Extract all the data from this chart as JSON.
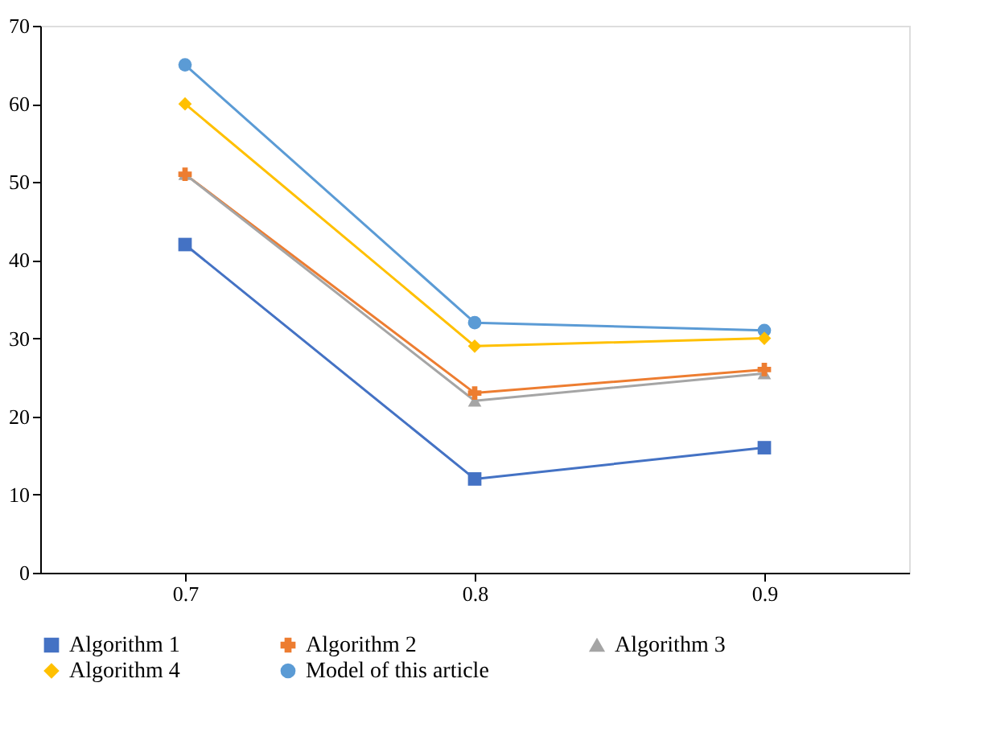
{
  "chart_data": {
    "type": "line",
    "categories": [
      "0.7",
      "0.8",
      "0.9"
    ],
    "ylim": [
      0,
      70
    ],
    "yticks": [
      0,
      10,
      20,
      30,
      40,
      50,
      60,
      70
    ],
    "grid": false,
    "legend": "bottom",
    "series": [
      {
        "name": "Algorithm 1",
        "color": "#4472c4",
        "marker": "square",
        "values": [
          42,
          12,
          16
        ]
      },
      {
        "name": "Algorithm 2",
        "color": "#ed7d31",
        "marker": "cross",
        "values": [
          51,
          23,
          26
        ]
      },
      {
        "name": "Algorithm 3",
        "color": "#a5a5a5",
        "marker": "triangle",
        "values": [
          51,
          22,
          25.5
        ]
      },
      {
        "name": "Algorithm 4",
        "color": "#ffc000",
        "marker": "diamond",
        "values": [
          60,
          29,
          30
        ]
      },
      {
        "name": "Model of this article",
        "color": "#5b9bd5",
        "marker": "circle",
        "values": [
          65,
          32,
          31
        ]
      }
    ]
  }
}
